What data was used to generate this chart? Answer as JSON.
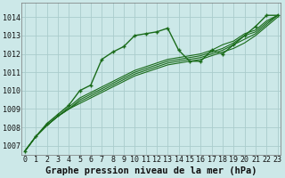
{
  "title": "Graphe pression niveau de la mer (hPa)",
  "xlabel_hours": [
    0,
    1,
    2,
    3,
    4,
    5,
    6,
    7,
    8,
    9,
    10,
    11,
    12,
    13,
    14,
    15,
    16,
    17,
    18,
    19,
    20,
    21,
    22,
    23
  ],
  "ylim": [
    1006.5,
    1014.8
  ],
  "yticks": [
    1007,
    1008,
    1009,
    1010,
    1011,
    1012,
    1013,
    1014
  ],
  "bg_color": "#cce8e8",
  "grid_color": "#aacccc",
  "line_color": "#1a6b1a",
  "series": [
    [
      1006.7,
      1007.5,
      1008.1,
      1008.6,
      1009.0,
      1009.3,
      1009.6,
      1009.9,
      1010.2,
      1010.5,
      1010.8,
      1011.0,
      1011.2,
      1011.4,
      1011.5,
      1011.6,
      1011.7,
      1011.9,
      1012.1,
      1012.3,
      1012.6,
      1013.0,
      1013.5,
      1014.0
    ],
    [
      1006.7,
      1007.5,
      1008.1,
      1008.6,
      1009.0,
      1009.4,
      1009.7,
      1010.0,
      1010.3,
      1010.6,
      1010.9,
      1011.1,
      1011.3,
      1011.5,
      1011.6,
      1011.7,
      1011.8,
      1012.0,
      1012.2,
      1012.5,
      1012.8,
      1013.1,
      1013.6,
      1014.1
    ],
    [
      1006.7,
      1007.5,
      1008.1,
      1008.6,
      1009.0,
      1009.5,
      1009.8,
      1010.1,
      1010.4,
      1010.7,
      1011.0,
      1011.2,
      1011.4,
      1011.6,
      1011.7,
      1011.8,
      1011.9,
      1012.1,
      1012.3,
      1012.6,
      1013.0,
      1013.2,
      1013.7,
      1014.1
    ],
    [
      1006.7,
      1007.5,
      1008.1,
      1008.6,
      1009.1,
      1009.6,
      1009.9,
      1010.2,
      1010.5,
      1010.8,
      1011.1,
      1011.3,
      1011.5,
      1011.7,
      1011.8,
      1011.9,
      1012.0,
      1012.2,
      1012.5,
      1012.7,
      1013.1,
      1013.3,
      1013.8,
      1014.1
    ],
    [
      1006.7,
      1007.5,
      1008.2,
      1008.7,
      1009.2,
      1010.0,
      1010.3,
      1011.7,
      1012.1,
      1012.4,
      1013.0,
      1013.1,
      1013.2,
      1013.4,
      1012.2,
      1011.6,
      1011.6,
      1012.2,
      1012.0,
      1012.5,
      1013.0,
      1013.5,
      1014.1,
      1014.1
    ]
  ],
  "marker_series": [
    4
  ],
  "title_fontsize": 7.5,
  "tick_fontsize": 6.0
}
